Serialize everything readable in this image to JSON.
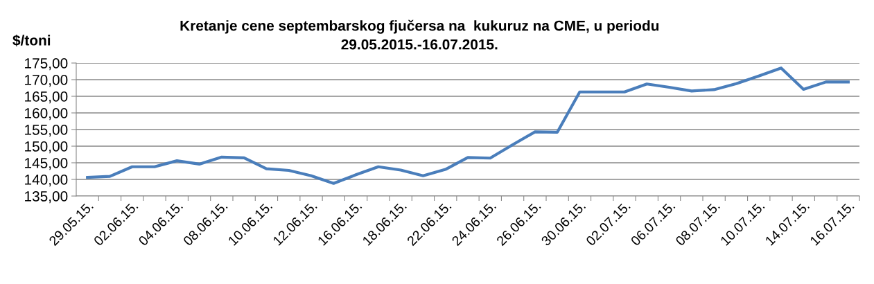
{
  "chart_data": {
    "type": "line",
    "title": "Kretanje cene septembarskog fjučersa na  kukuruz na CME, u periodu\n29.05.2015.-16.07.2015.",
    "ylabel": "$/toni",
    "categories": [
      "29.05.15.",
      null,
      "02.06.15.",
      null,
      "04.06.15.",
      null,
      "08.06.15.",
      null,
      "10.06.15.",
      null,
      "12.06.15.",
      null,
      "16.06.15.",
      null,
      "18.06.15.",
      null,
      "22.06.15.",
      null,
      "24.06.15.",
      null,
      "26.06.15.",
      null,
      "30.06.15.",
      null,
      "02.07.15.",
      null,
      "06.07.15.",
      null,
      "08.07.15.",
      null,
      "10.07.15.",
      null,
      "14.07.15.",
      null,
      "16.07.15."
    ],
    "series": [
      {
        "color": "#4a7ebb",
        "values": [
          140.6,
          140.9,
          143.8,
          143.8,
          145.6,
          144.6,
          146.7,
          146.5,
          143.2,
          142.7,
          141.1,
          138.8,
          141.4,
          143.8,
          142.8,
          141.1,
          143.0,
          146.6,
          146.4,
          150.4,
          154.3,
          154.2,
          166.3,
          166.3,
          166.3,
          168.7,
          167.7,
          166.6,
          167.0,
          168.8,
          171.1,
          173.5,
          167.1,
          169.3,
          169.3
        ]
      }
    ],
    "ylim": [
      135,
      175
    ],
    "yticks": [
      {
        "value": 135,
        "label": "135,00"
      },
      {
        "value": 140,
        "label": "140,00"
      },
      {
        "value": 145,
        "label": "145,00"
      },
      {
        "value": 150,
        "label": "150,00"
      },
      {
        "value": 155,
        "label": "155,00"
      },
      {
        "value": 160,
        "label": "160,00"
      },
      {
        "value": 165,
        "label": "165,00"
      },
      {
        "value": 170,
        "label": "170,00"
      },
      {
        "value": 175,
        "label": "175,00"
      }
    ],
    "grid": "y",
    "legend": false,
    "marker": "none",
    "line_style": "solid"
  }
}
